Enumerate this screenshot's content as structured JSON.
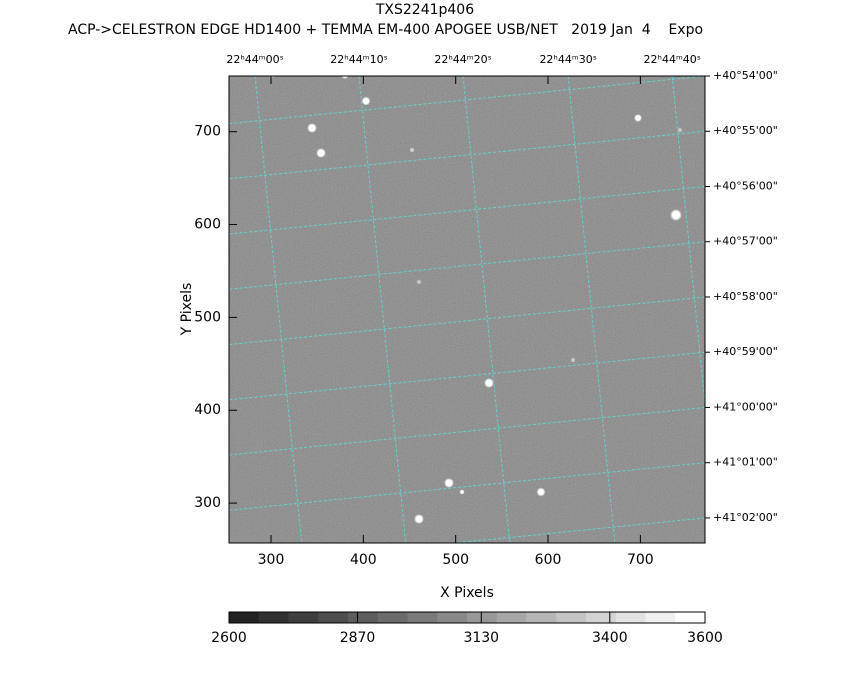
{
  "chart_data": {
    "type": "image",
    "title": "TXS2241p406",
    "subtitle": "ACP->CELESTRON EDGE HD1400 + TEMMA EM-400 APOGEE USB/NET   2019 Jan  4    Expo",
    "x_label": "X Pixels",
    "y_label": "Y Pixels",
    "xlim": [
      254.5,
      770
    ],
    "ylim": [
      257,
      760
    ],
    "xticks": [
      300,
      400,
      500,
      600,
      700
    ],
    "yticks": [
      300,
      400,
      500,
      600,
      700
    ],
    "ra_ticks": [
      {
        "value": 282.7,
        "label": "22ʰ44ᵐ00ˢ"
      },
      {
        "value": 395.3,
        "label": "22ʰ44ᵐ10ˢ"
      },
      {
        "value": 508,
        "label": "22ʰ44ᵐ20ˢ"
      },
      {
        "value": 621.8,
        "label": "22ʰ44ᵐ30ˢ"
      },
      {
        "value": 734.5,
        "label": "22ʰ44ᵐ40ˢ"
      }
    ],
    "dec_ticks": [
      {
        "value": 760,
        "label": "+40°54'00\""
      },
      {
        "value": 700.5,
        "label": "+40°55'00\""
      },
      {
        "value": 641,
        "label": "+40°56'00\""
      },
      {
        "value": 581.5,
        "label": "+40°57'00\""
      },
      {
        "value": 522,
        "label": "+40°58'00\""
      },
      {
        "value": 462.5,
        "label": "+40°59'00\""
      },
      {
        "value": 403,
        "label": "+41°00'00\""
      },
      {
        "value": 343.5,
        "label": "+41°01'00\""
      },
      {
        "value": 284,
        "label": "+41°02'00\""
      }
    ],
    "colorbar": {
      "lim": [
        2600,
        3600
      ],
      "ticks": [
        2600,
        2870,
        3130,
        3400,
        3600
      ]
    },
    "grid": true,
    "grid_color": "#5fd3d3"
  }
}
